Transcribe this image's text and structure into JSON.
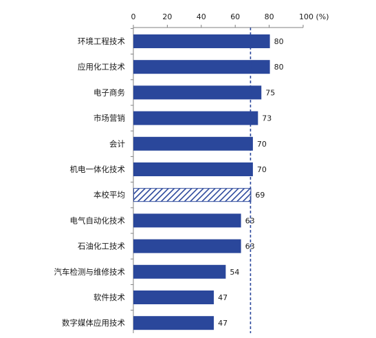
{
  "chart_data": {
    "type": "bar",
    "orientation": "horizontal",
    "categories": [
      "环境工程技术",
      "应用化工技术",
      "电子商务",
      "市场营销",
      "会计",
      "机电一体化技术",
      "本校平均",
      "电气自动化技术",
      "石油化工技术",
      "汽车检测与维修技术",
      "软件技术",
      "数字媒体应用技术"
    ],
    "values": [
      80,
      80,
      75,
      73,
      70,
      70,
      69,
      63,
      63,
      54,
      47,
      47
    ],
    "highlight_category": "本校平均",
    "reference_line": {
      "value": 69,
      "style": "dashed"
    },
    "xlim": [
      0,
      100
    ],
    "x_ticks": [
      "0",
      "20",
      "40",
      "60",
      "80",
      "100 (%)"
    ],
    "x_axis_position": "top",
    "title": "",
    "xlabel": "",
    "ylabel": "",
    "grid": false,
    "legend": "none",
    "colors": {
      "bar": "#2A479B",
      "bar_highlight_stripe": "#2A479B",
      "reference_line": "#2A479B"
    }
  }
}
